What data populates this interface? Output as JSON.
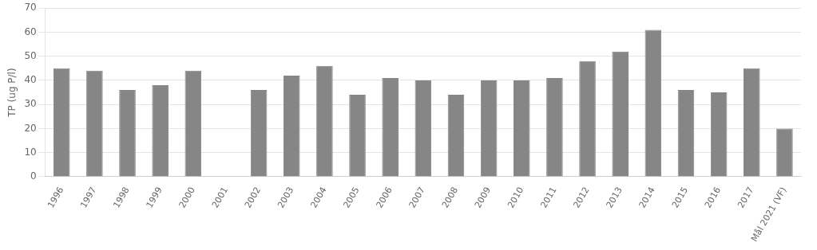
{
  "chart_data": {
    "type": "bar",
    "categories": [
      "1996",
      "1997",
      "1998",
      "1999",
      "2000",
      "2001",
      "2002",
      "2003",
      "2004",
      "2005",
      "2006",
      "2007",
      "2008",
      "2009",
      "2010",
      "2011",
      "2012",
      "2013",
      "2014",
      "2015",
      "2016",
      "2017",
      "Mål 2021 (VF)"
    ],
    "values": [
      45,
      44,
      36,
      38,
      44,
      null,
      36,
      42,
      46,
      34,
      41,
      40,
      34,
      40,
      40,
      41,
      48,
      52,
      61,
      36,
      35,
      45,
      20
    ],
    "color": "#868686",
    "ylabel": "TP (ug P/l)",
    "ylim": [
      0,
      70
    ],
    "yticks": [
      0,
      10,
      20,
      30,
      40,
      50,
      60,
      70
    ],
    "grid": true
  }
}
